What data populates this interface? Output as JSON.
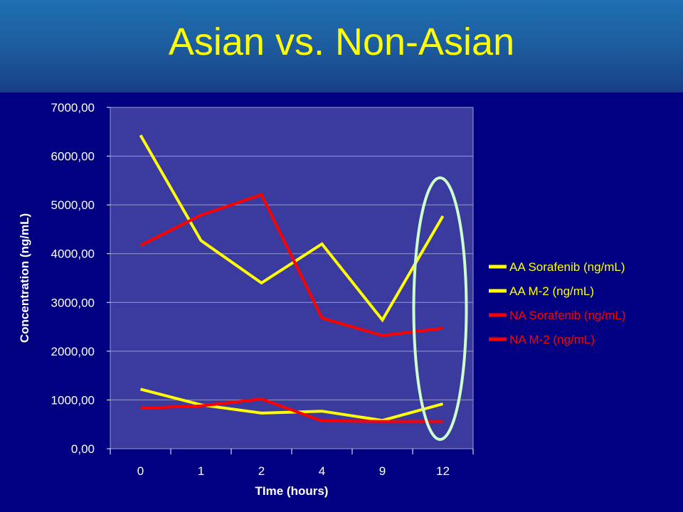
{
  "title": "Asian vs. Non-Asian",
  "chart_data": {
    "type": "line",
    "categories": [
      "0",
      "1",
      "2",
      "4",
      "9",
      "12"
    ],
    "ylim": [
      0,
      7000
    ],
    "yticks": [
      "0,00",
      "1000,00",
      "2000,00",
      "3000,00",
      "4000,00",
      "5000,00",
      "6000,00",
      "7000,00"
    ],
    "xlabel": "TIme (hours)",
    "ylabel": "Concentration (ng/mL)",
    "grid": true,
    "legend_position": "right",
    "series": [
      {
        "name": "AA Sorafenib (ng/mL)",
        "color": "#ffff00",
        "values": [
          6430,
          4270,
          3400,
          4200,
          2640,
          4770
        ]
      },
      {
        "name": "AA M-2 (ng/mL)",
        "color": "#ffff00",
        "values": [
          1220,
          900,
          730,
          770,
          580,
          920
        ]
      },
      {
        "name": "NA Sorafenib (ng/mL)",
        "color": "#ff0000",
        "values": [
          4170,
          4790,
          5210,
          2680,
          2320,
          2470
        ]
      },
      {
        "name": "NA M-2 (ng/mL)",
        "color": "#ff0000",
        "values": [
          830,
          880,
          1020,
          570,
          560,
          560
        ]
      }
    ],
    "annotation": {
      "type": "ellipse",
      "color": "#ccffcc",
      "category": "12"
    }
  }
}
